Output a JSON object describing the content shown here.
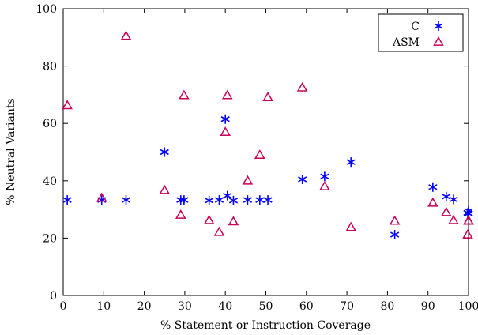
{
  "chart_data": {
    "type": "scatter",
    "xlabel": "% Statement or Instruction Coverage",
    "ylabel": "% Neutral Variants",
    "xlim": [
      0,
      100
    ],
    "ylim": [
      0,
      100
    ],
    "xticks": [
      0,
      10,
      20,
      30,
      40,
      50,
      60,
      70,
      80,
      90,
      100
    ],
    "yticks": [
      0,
      20,
      40,
      60,
      80,
      100
    ],
    "grid": false,
    "legend_position": "top-right",
    "series": [
      {
        "name": "C",
        "marker": "star",
        "color": "#0000ff",
        "x": [
          1,
          9.5,
          15.5,
          25,
          29,
          29.8,
          36,
          38.5,
          40,
          40.5,
          42,
          45.5,
          48.5,
          50.5,
          59,
          64.5,
          71,
          81.8,
          91.2,
          94.5,
          96.3,
          99.8,
          100,
          100
        ],
        "y": [
          33.3,
          33.3,
          33.3,
          50,
          33.3,
          33.3,
          33.1,
          33.3,
          61.5,
          34.8,
          33.1,
          33.3,
          33.3,
          33.3,
          40.5,
          41.5,
          46.5,
          21.2,
          37.8,
          34.5,
          33.5,
          28.8,
          29.5,
          28.6
        ]
      },
      {
        "name": "ASM",
        "marker": "triangle",
        "color": "#c8005a",
        "x": [
          1,
          9.5,
          15.5,
          25,
          29,
          29.8,
          36,
          38.5,
          40,
          40.5,
          42,
          45.5,
          48.5,
          50.5,
          59,
          64.5,
          71,
          81.8,
          91.2,
          94.5,
          96.3,
          99.8,
          100,
          100
        ],
        "y": [
          66.3,
          34,
          90.5,
          36.7,
          28.1,
          69.8,
          26.2,
          22.1,
          57,
          69.8,
          25.8,
          40,
          49,
          69.1,
          72.5,
          38,
          23.8,
          26,
          32.3,
          29,
          26.2,
          21.2,
          26,
          26.1
        ]
      }
    ]
  }
}
